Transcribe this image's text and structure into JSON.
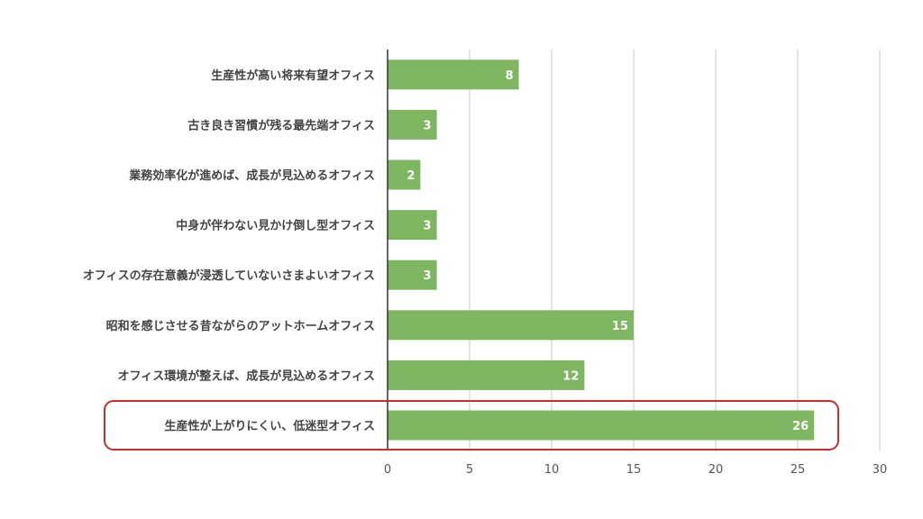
{
  "chart_data": {
    "type": "bar",
    "orientation": "horizontal",
    "categories": [
      "生産性が高い将来有望オフィス",
      "古き良き習慣が残る最先端オフィス",
      "業務効率化が進めば、成長が見込めるオフィス",
      "中身が伴わない見かけ倒し型オフィス",
      "オフィスの存在意義が浸透していないさまよいオフィス",
      "昭和を感じさせる昔ながらのアットホームオフィス",
      "オフィス環境が整えば、成長が見込めるオフィス",
      "生産性が上がりにくい、低迷型オフィス"
    ],
    "values": [
      8,
      3,
      2,
      3,
      3,
      15,
      12,
      26
    ],
    "data_labels": [
      "8",
      "3",
      "2",
      "3",
      "3",
      "15",
      "12",
      "26"
    ],
    "xlim": [
      0,
      30
    ],
    "xticks": [
      0,
      5,
      10,
      15,
      20,
      25,
      30
    ],
    "xtick_labels": [
      "0",
      "5",
      "10",
      "15",
      "20",
      "25",
      "30"
    ],
    "grid": "vertical",
    "legend": "none",
    "highlighted_category": "生産性が上がりにくい、低迷型オフィス",
    "colors": {
      "bar": "#7fb661",
      "highlight_border": "#cc2b2b",
      "grid": "#c8c8c8",
      "axis": "#333333"
    }
  }
}
